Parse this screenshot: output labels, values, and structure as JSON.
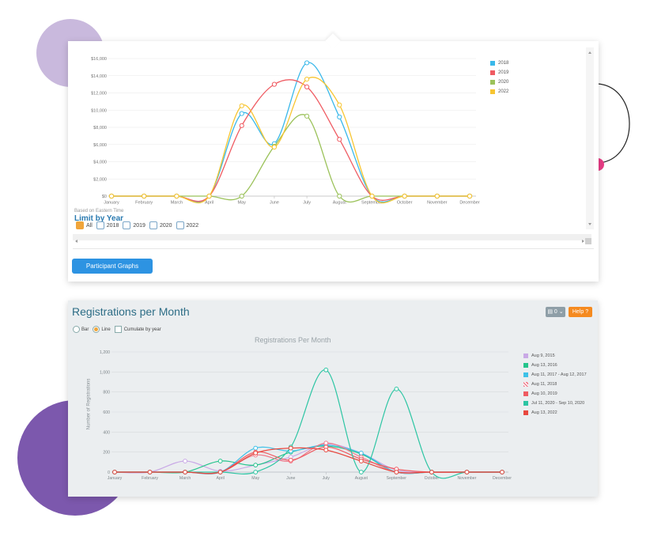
{
  "decor": {
    "circle_top": "#c9b9dd",
    "circle_bottom": "#7c58ad",
    "dot": "#e93d86"
  },
  "panel1": {
    "chart_data": {
      "type": "line",
      "categories": [
        "January",
        "February",
        "March",
        "April",
        "May",
        "June",
        "July",
        "August",
        "September",
        "October",
        "November",
        "December"
      ],
      "y_tick_labels": [
        "$0",
        "$2,000",
        "$4,000",
        "$6,000",
        "$8,000",
        "$10,000",
        "$12,000",
        "$14,000",
        "$16,000"
      ],
      "ylim": [
        0,
        16000
      ],
      "legend_position": "top-right",
      "series": [
        {
          "name": "2018",
          "color": "#3ab8ea",
          "values": [
            0,
            0,
            0,
            0,
            9600,
            6100,
            15500,
            9200,
            0,
            0,
            0,
            0
          ]
        },
        {
          "name": "2019",
          "color": "#ef5b62",
          "values": [
            0,
            0,
            0,
            0,
            8200,
            13000,
            12700,
            6600,
            0,
            0,
            0,
            0
          ]
        },
        {
          "name": "2020",
          "color": "#9bc25a",
          "values": [
            0,
            0,
            0,
            0,
            0,
            5800,
            9300,
            0,
            0,
            0,
            0,
            0
          ]
        },
        {
          "name": "2022",
          "color": "#f7c531",
          "values": [
            0,
            0,
            0,
            0,
            10500,
            5700,
            13600,
            10600,
            0,
            0,
            0,
            0
          ]
        }
      ]
    },
    "note": "Based on Eastern Time",
    "limit_title": "Limit by Year",
    "limit_options": [
      {
        "label": "All",
        "checked": true
      },
      {
        "label": "2018",
        "checked": false
      },
      {
        "label": "2019",
        "checked": false
      },
      {
        "label": "2020",
        "checked": false
      },
      {
        "label": "2022",
        "checked": false
      }
    ],
    "button_label": "Participant Graphs"
  },
  "panel2": {
    "title": "Registrations per Month",
    "grey_button": "▤ 0 ⌄",
    "help_button": "Help ?",
    "radio_bar": "Bar",
    "radio_line": "Line",
    "cumulate_label": "Cumulate by year",
    "chart_data": {
      "type": "line",
      "title": "Registrations Per Month",
      "ylabel": "Number of Registrations",
      "categories": [
        "January",
        "February",
        "March",
        "April",
        "May",
        "June",
        "July",
        "August",
        "September",
        "October",
        "November",
        "December"
      ],
      "y_tick_labels": [
        "0",
        "200",
        "400",
        "600",
        "800",
        "1,000",
        "1,200"
      ],
      "ylim": [
        0,
        1200
      ],
      "legend_position": "right",
      "series": [
        {
          "name": "Aug 9, 2015",
          "color": "#c9a9e6",
          "values": [
            0,
            0,
            110,
            10,
            70,
            150,
            280,
            190,
            20,
            0,
            0,
            0
          ]
        },
        {
          "name": "Aug 13, 2016",
          "color": "#25c48c",
          "values": [
            0,
            0,
            0,
            110,
            70,
            200,
            260,
            180,
            0,
            0,
            0,
            0
          ]
        },
        {
          "name": "Aug 11, 2017 - Aug 12, 2017",
          "color": "#3ec1e8",
          "values": [
            0,
            0,
            0,
            0,
            240,
            210,
            270,
            190,
            0,
            0,
            0,
            0
          ]
        },
        {
          "name": "Aug 11, 2018",
          "color": "#f07a8a",
          "values": [
            0,
            0,
            0,
            0,
            170,
            110,
            290,
            150,
            0,
            0,
            0,
            0
          ]
        },
        {
          "name": "Aug 10, 2019",
          "color": "#ef5b62",
          "values": [
            0,
            0,
            0,
            0,
            200,
            120,
            250,
            130,
            30,
            0,
            0,
            0
          ]
        },
        {
          "name": "Jul 11, 2020 - Sep 10, 2020",
          "color": "#2cc5a3",
          "values": [
            0,
            0,
            0,
            0,
            0,
            250,
            1020,
            0,
            830,
            0,
            0,
            0
          ]
        },
        {
          "name": "Aug 13, 2022",
          "color": "#e8483f",
          "values": [
            0,
            0,
            0,
            0,
            190,
            240,
            220,
            110,
            0,
            0,
            0,
            0
          ]
        }
      ]
    }
  }
}
